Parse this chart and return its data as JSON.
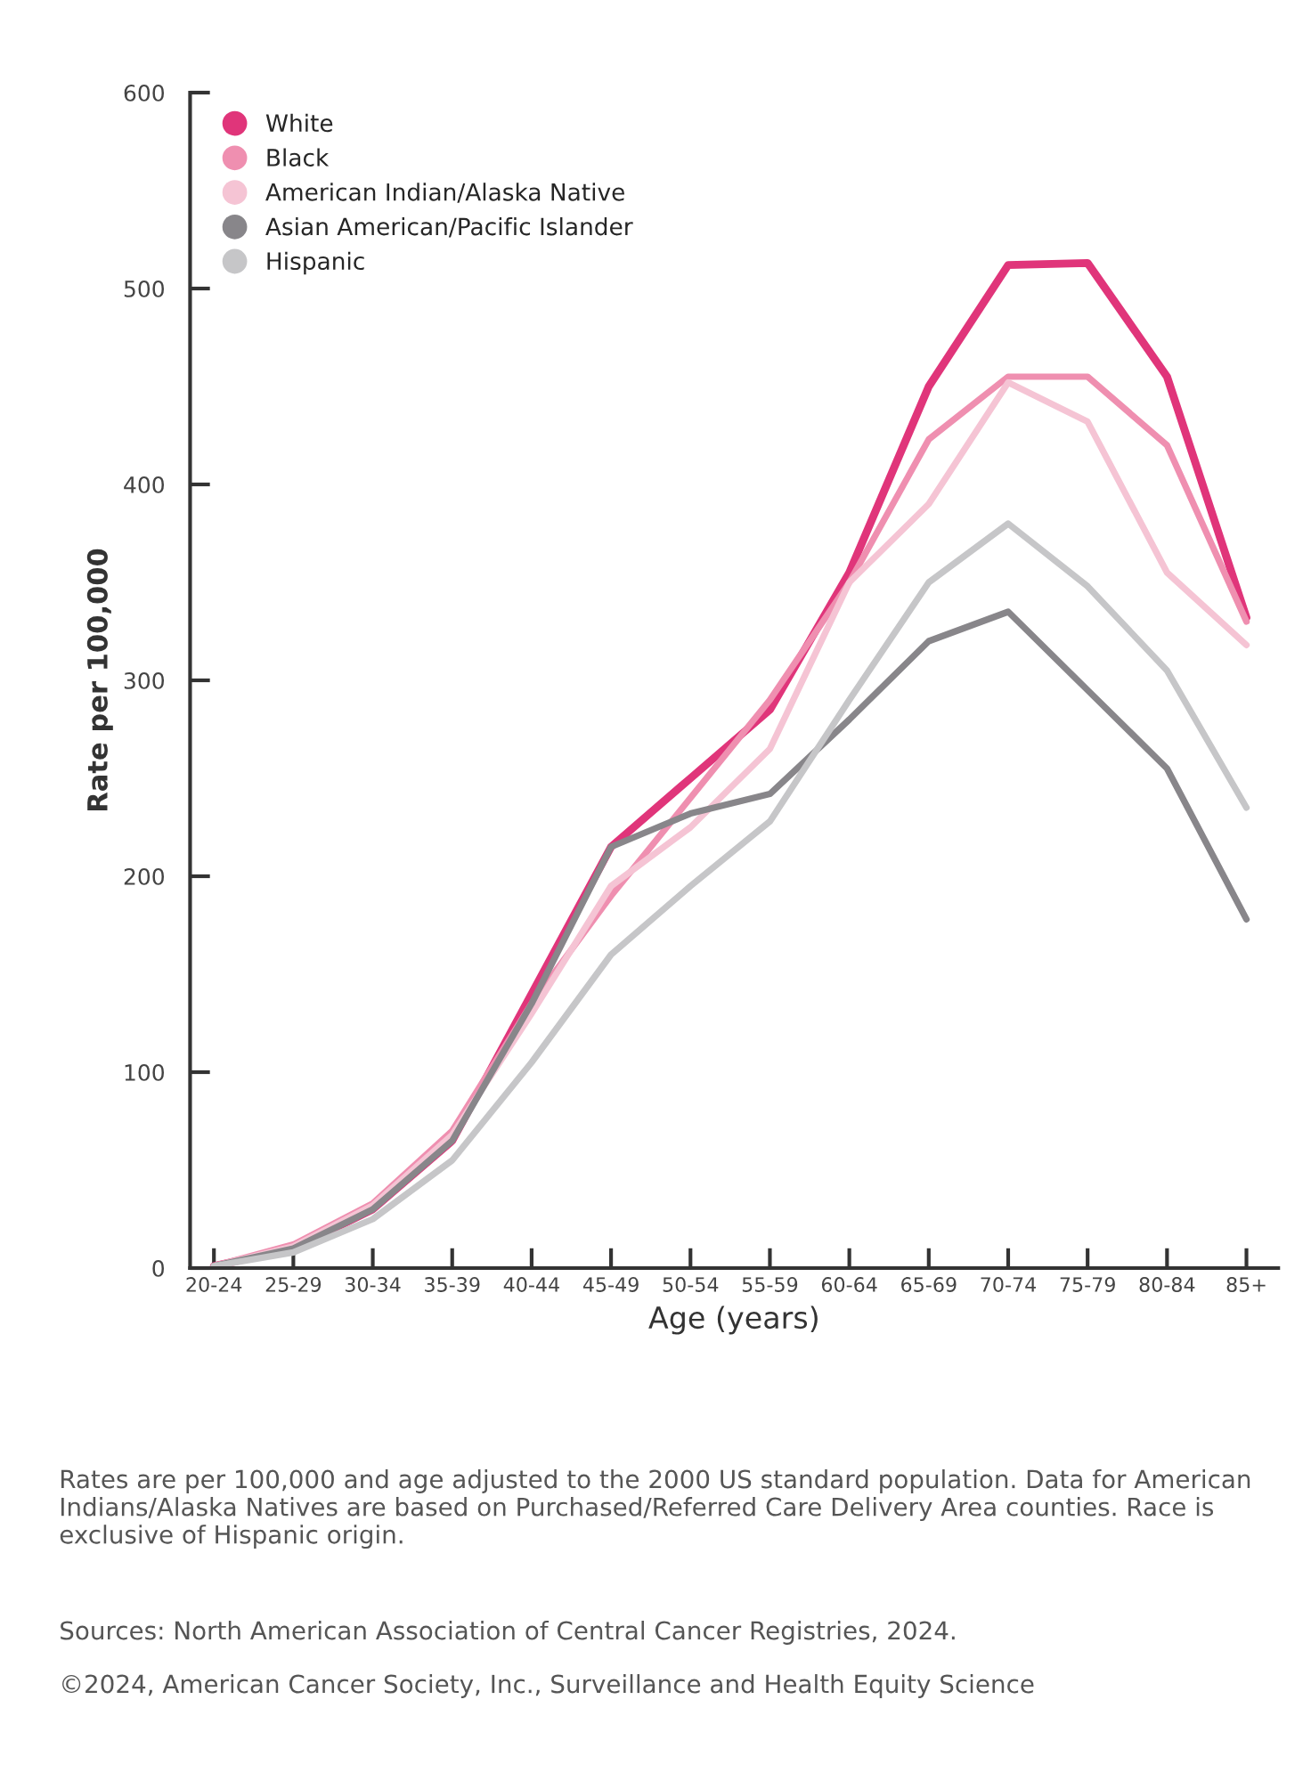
{
  "chart_data": {
    "type": "line",
    "xlabel": "Age (years)",
    "ylabel": "Rate per 100,000",
    "categories": [
      "20-24",
      "25-29",
      "30-34",
      "35-39",
      "40-44",
      "45-49",
      "50-54",
      "55-59",
      "60-64",
      "65-69",
      "70-74",
      "75-79",
      "80-84",
      "85+"
    ],
    "series": [
      {
        "name": "White",
        "color": "#e0357a",
        "values": [
          1,
          10,
          30,
          65,
          140,
          215,
          250,
          285,
          355,
          450,
          512,
          513,
          455,
          332
        ]
      },
      {
        "name": "Black",
        "color": "#ef8fb0",
        "values": [
          1,
          12,
          33,
          70,
          135,
          190,
          240,
          290,
          350,
          423,
          455,
          455,
          420,
          330
        ]
      },
      {
        "name": "American Indian/Alaska Native",
        "color": "#f5c4d4",
        "values": [
          1,
          11,
          32,
          68,
          130,
          195,
          225,
          265,
          350,
          390,
          452,
          432,
          355,
          318
        ]
      },
      {
        "name": "Asian American/Pacific Islander",
        "color": "#88868a",
        "values": [
          1,
          10,
          30,
          65,
          135,
          215,
          232,
          242,
          280,
          320,
          335,
          295,
          255,
          178
        ]
      },
      {
        "name": "Hispanic",
        "color": "#c6c6c8",
        "values": [
          1,
          8,
          25,
          55,
          105,
          160,
          195,
          228,
          290,
          350,
          380,
          348,
          305,
          235
        ]
      }
    ],
    "ylim": [
      0,
      600
    ],
    "yticks": [
      0,
      100,
      200,
      300,
      400,
      500,
      600
    ],
    "grid": false,
    "legend": "top left",
    "marker": "none",
    "line_style": "solid",
    "annotations": [
      "Rates are per 100,000 and age adjusted to the 2000 US standard population. Data for American Indians/Alaska Natives are based on Purchased/Referred Care Delivery Area counties. Race is exclusive of Hispanic origin.",
      "Sources: North American Association of Central Cancer Registries, 2024.",
      "©2024, American Cancer Society, Inc., Surveillance and Health Equity Science"
    ]
  }
}
